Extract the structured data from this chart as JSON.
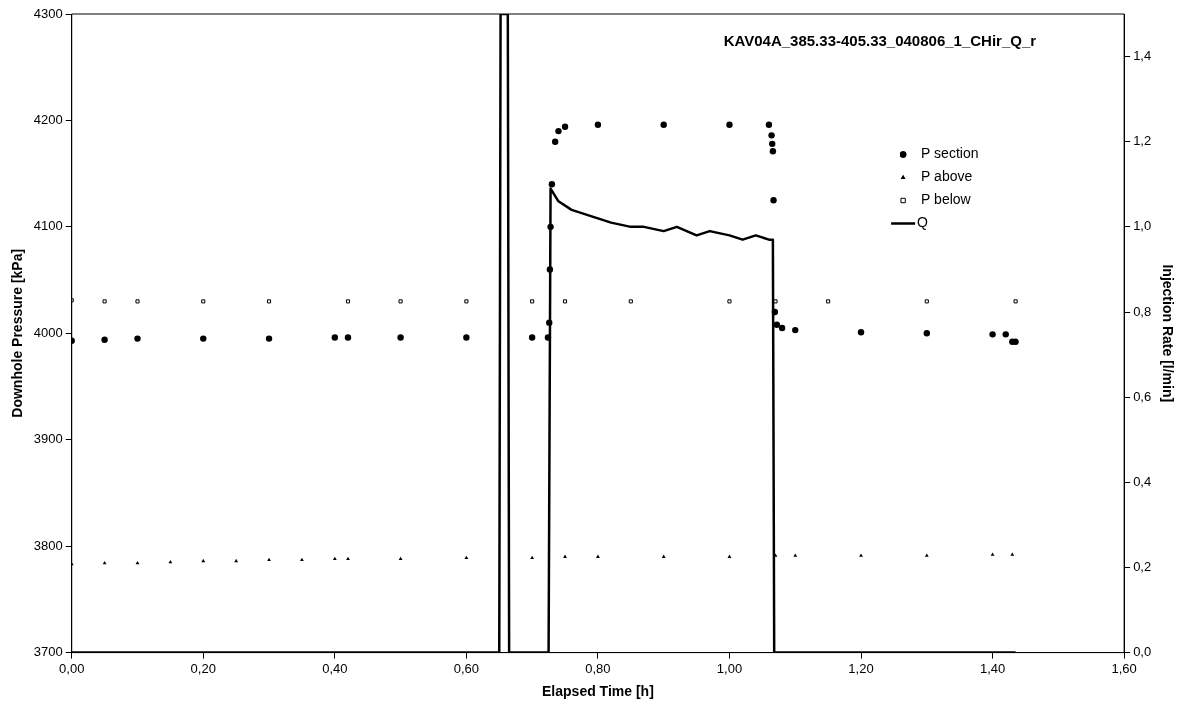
{
  "chart_data": {
    "type": "scatter",
    "title": "KAV04A_385.33-405.33_040806_1_CHir_Q_r",
    "xlabel": "Elapsed Time [h]",
    "ylabel": "Downhole Pressure [kPa]",
    "y2label": "Injection Rate [l/min]",
    "xlim": [
      0,
      1.6
    ],
    "xticks": [
      {
        "value": 0,
        "label": "0,00"
      },
      {
        "value": 0.2,
        "label": "0,20"
      },
      {
        "value": 0.4,
        "label": "0,40"
      },
      {
        "value": 0.6,
        "label": "0,60"
      },
      {
        "value": 0.8,
        "label": "0,80"
      },
      {
        "value": 1,
        "label": "1,00"
      },
      {
        "value": 1.2,
        "label": "1,20"
      },
      {
        "value": 1.4,
        "label": "1,40"
      },
      {
        "value": 1.6,
        "label": "1,60"
      }
    ],
    "ylim": [
      3700,
      4300
    ],
    "yticks": [
      3700,
      3800,
      3900,
      4000,
      4100,
      4200,
      4300
    ],
    "y2lim": [
      0,
      1.5
    ],
    "y2ticks": [
      {
        "value": 0,
        "label": "0,0"
      },
      {
        "value": 0.2,
        "label": "0,2"
      },
      {
        "value": 0.4,
        "label": "0,4"
      },
      {
        "value": 0.6,
        "label": "0,6"
      },
      {
        "value": 0.8,
        "label": "0,8"
      },
      {
        "value": 1,
        "label": "1,0"
      },
      {
        "value": 1.2,
        "label": "1,2"
      },
      {
        "value": 1.4,
        "label": "1,4"
      }
    ],
    "grid": false,
    "legend": "right",
    "series": [
      {
        "name": "P section",
        "marker": "circle",
        "color": "#000000",
        "x": [
          0,
          0.05,
          0.1,
          0.2,
          0.3,
          0.4,
          0.42,
          0.5,
          0.6,
          0.7,
          0.724,
          0.726,
          0.727,
          0.728,
          0.73,
          0.735,
          0.74,
          0.75,
          0.8,
          0.9,
          1.0,
          1.06,
          1.064,
          1.065,
          1.066,
          1.067,
          1.069,
          1.072,
          1.08,
          1.1,
          1.2,
          1.3,
          1.4,
          1.42,
          1.43,
          1.435
        ],
        "values": [
          3993,
          3994,
          3995,
          3995,
          3995,
          3996,
          3996,
          3996,
          3996,
          3996,
          3996,
          4010,
          4060,
          4100,
          4140,
          4180,
          4190,
          4194,
          4196,
          4196,
          4196,
          4196,
          4186,
          4178,
          4171,
          4125,
          4020,
          4008,
          4005,
          4003,
          4001,
          4000,
          3999,
          3999,
          3992,
          3992
        ]
      },
      {
        "name": "P above",
        "marker": "triangle",
        "color": "#000000",
        "x": [
          0,
          0.05,
          0.1,
          0.15,
          0.2,
          0.25,
          0.3,
          0.35,
          0.4,
          0.42,
          0.5,
          0.6,
          0.7,
          0.75,
          0.8,
          0.9,
          1.0,
          1.07,
          1.1,
          1.2,
          1.3,
          1.4,
          1.43
        ],
        "values": [
          3783,
          3784,
          3784,
          3785,
          3786,
          3786,
          3787,
          3787,
          3788,
          3788,
          3788,
          3789,
          3789,
          3790,
          3790,
          3790,
          3790,
          3791,
          3791,
          3791,
          3791,
          3792,
          3792
        ]
      },
      {
        "name": "P below",
        "marker": "square",
        "color": "#000000",
        "x": [
          0,
          0.05,
          0.1,
          0.2,
          0.3,
          0.42,
          0.5,
          0.6,
          0.7,
          0.75,
          0.85,
          1.0,
          1.07,
          1.15,
          1.3,
          1.435
        ],
        "values": [
          4031,
          4030,
          4030,
          4030,
          4030,
          4030,
          4030,
          4030,
          4030,
          4030,
          4030,
          4030,
          4030,
          4030,
          4030,
          4030
        ]
      },
      {
        "name": "Q",
        "type": "line",
        "axis": "y2",
        "marker": "none",
        "color": "#000000",
        "x": [
          0,
          0.65,
          0.652,
          0.663,
          0.665,
          0.725,
          0.728,
          0.732,
          0.74,
          0.76,
          0.78,
          0.8,
          0.82,
          0.85,
          0.87,
          0.9,
          0.92,
          0.95,
          0.97,
          1.0,
          1.02,
          1.04,
          1.06,
          1.066,
          1.068,
          1.435
        ],
        "values": [
          0,
          0,
          1.5,
          1.5,
          0,
          0,
          1.09,
          1.08,
          1.06,
          1.04,
          1.03,
          1.02,
          1.01,
          1.0,
          1.0,
          0.99,
          1.0,
          0.98,
          0.99,
          0.98,
          0.97,
          0.98,
          0.97,
          0.97,
          0,
          0
        ]
      }
    ]
  }
}
